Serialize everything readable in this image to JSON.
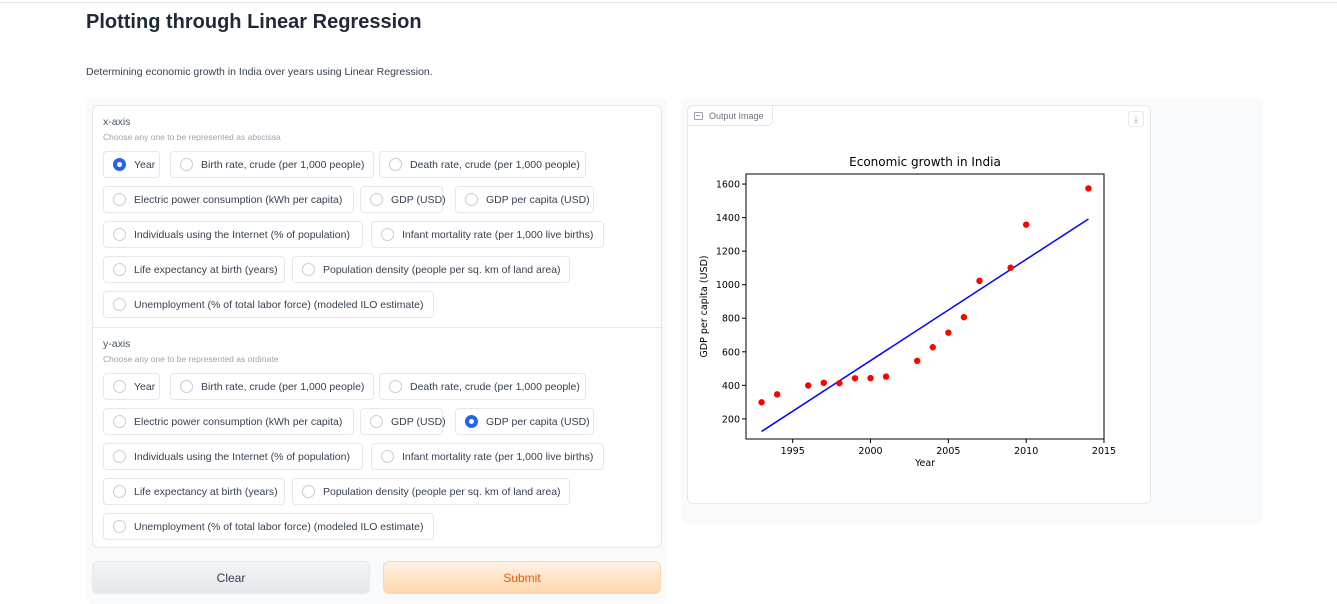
{
  "page": {
    "title": "Plotting through Linear Regression",
    "description": "Determining economic growth in India over years using Linear Regression."
  },
  "xaxis": {
    "label": "x-axis",
    "info": "Choose any one to be represented as abscissa",
    "selected": "Year",
    "options": [
      "Year",
      "Birth rate, crude (per 1,000 people)",
      "Death rate, crude (per 1,000 people)",
      "Electric power consumption (kWh per capita)",
      "GDP (USD)",
      "GDP per capita (USD)",
      "Individuals using the Internet (% of population)",
      "Infant mortality rate (per 1,000 live births)",
      "Life expectancy at birth (years)",
      "Population density (people per sq. km of land area)",
      "Unemployment (% of total labor force) (modeled ILO estimate)"
    ]
  },
  "yaxis": {
    "label": "y-axis",
    "info": "Choose any one to be represented as ordinate",
    "selected": "GDP per capita (USD)",
    "options": [
      "Year",
      "Birth rate, crude (per 1,000 people)",
      "Death rate, crude (per 1,000 people)",
      "Electric power consumption (kWh per capita)",
      "GDP (USD)",
      "GDP per capita (USD)",
      "Individuals using the Internet (% of population)",
      "Infant mortality rate (per 1,000 live births)",
      "Life expectancy at birth (years)",
      "Population density (people per sq. km of land area)",
      "Unemployment (% of total labor force) (modeled ILO estimate)"
    ]
  },
  "buttons": {
    "clear": "Clear",
    "submit": "Submit"
  },
  "output": {
    "label": "Output Image",
    "download_icon": "download-icon"
  },
  "colors": {
    "accent": "#2563eb",
    "submit_text": "#ea580c",
    "points": "#ff0000",
    "line": "#0000ff"
  },
  "chart_data": {
    "type": "scatter",
    "title": "Economic growth in India",
    "xlabel": "Year",
    "ylabel": "GDP per capita (USD)",
    "xlim": [
      1992,
      2015
    ],
    "ylim": [
      80,
      1660
    ],
    "xticks": [
      1995,
      2000,
      2005,
      2010,
      2015
    ],
    "yticks": [
      200,
      400,
      600,
      800,
      1000,
      1200,
      1400,
      1600
    ],
    "points": {
      "x": [
        1993,
        1994,
        1996,
        1997,
        1998,
        1999,
        2000,
        2001,
        2003,
        2004,
        2005,
        2006,
        2007,
        2009,
        2010,
        2014
      ],
      "y": [
        299,
        346,
        399,
        415,
        413,
        442,
        443,
        452,
        546,
        627,
        714,
        806,
        1023,
        1101,
        1358,
        1574
      ]
    },
    "regression_line": {
      "x": [
        1993,
        2014
      ],
      "y": [
        125,
        1392
      ]
    },
    "grid": false
  }
}
